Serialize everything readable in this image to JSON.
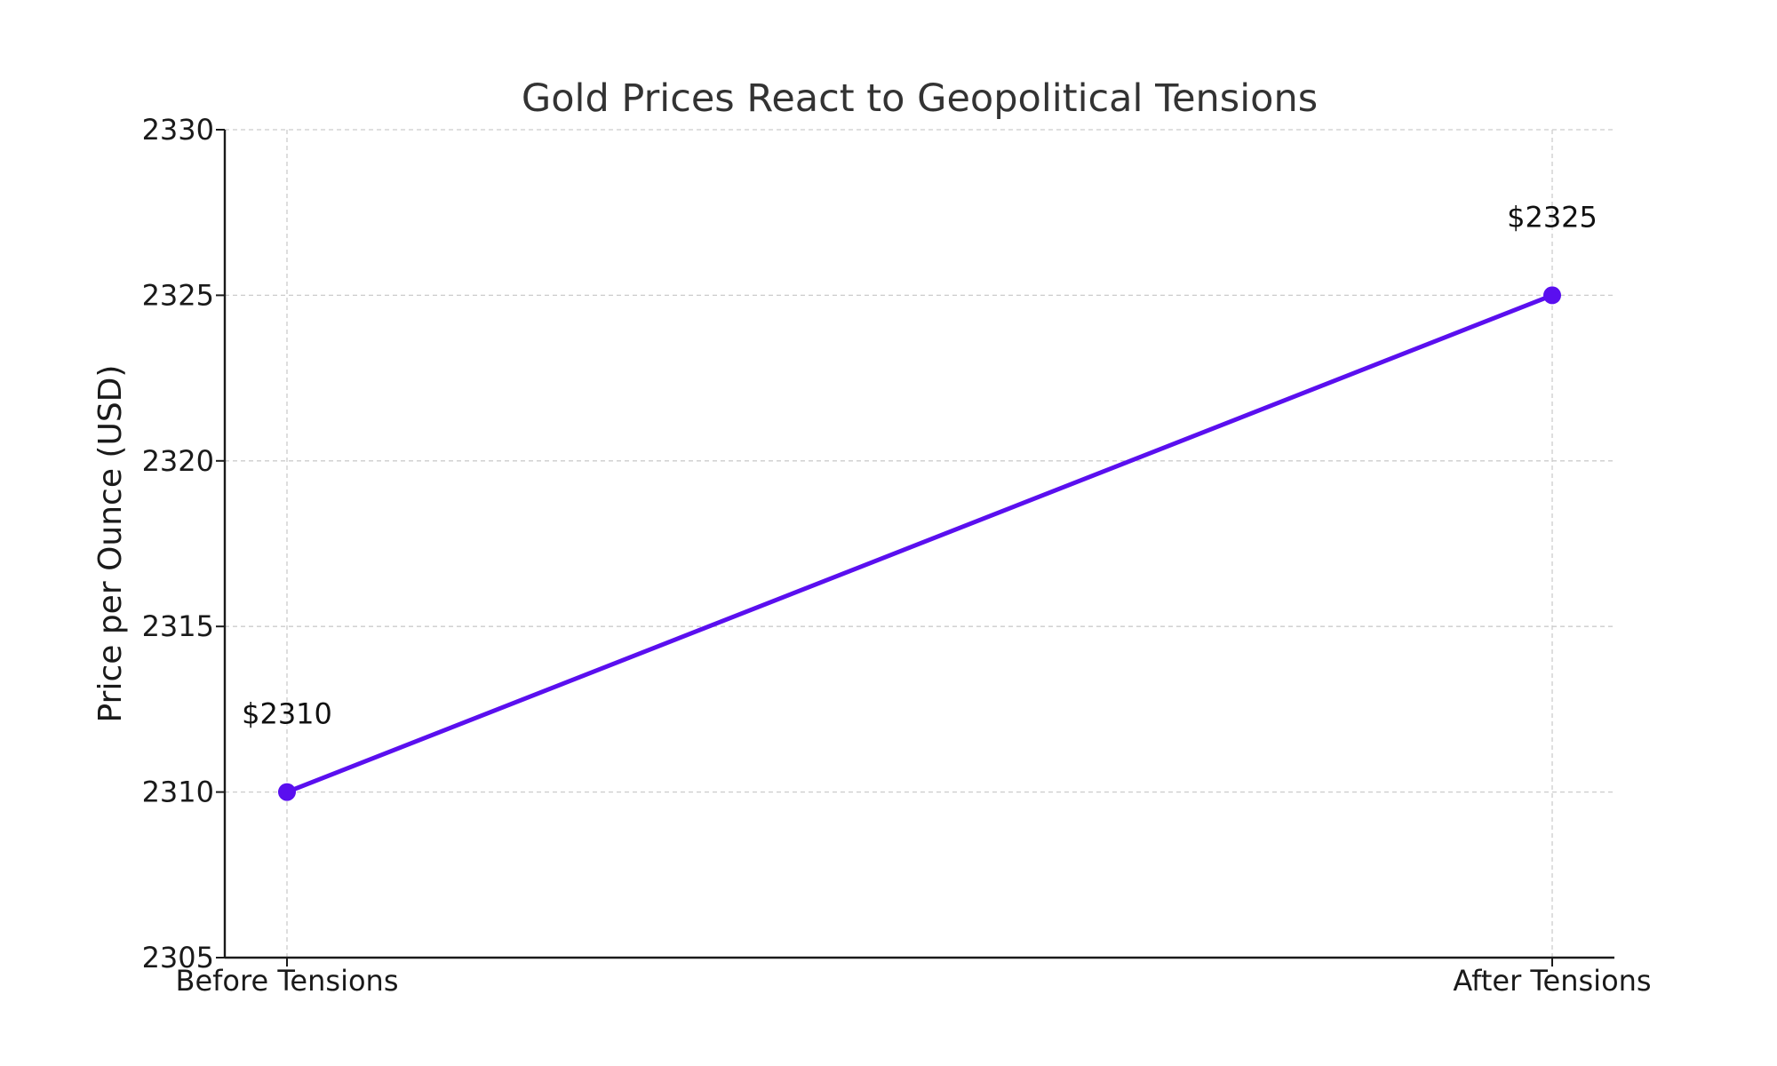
{
  "chart_data": {
    "type": "line",
    "title": "Gold Prices React to Geopolitical Tensions",
    "xlabel": "",
    "ylabel": "Price per Ounce (USD)",
    "categories": [
      "Before Tensions",
      "After Tensions"
    ],
    "series": [
      {
        "values": [
          2310,
          2325
        ],
        "color": "#5a0fef"
      }
    ],
    "data_labels": [
      "$2310",
      "$2325"
    ],
    "ylim": [
      2305,
      2330
    ],
    "yticks": [
      2305,
      2310,
      2315,
      2320,
      2325,
      2330
    ],
    "ytick_labels": [
      "2305",
      "2310",
      "2315",
      "2320",
      "2325",
      "2330"
    ],
    "grid": true,
    "legend": "none"
  }
}
